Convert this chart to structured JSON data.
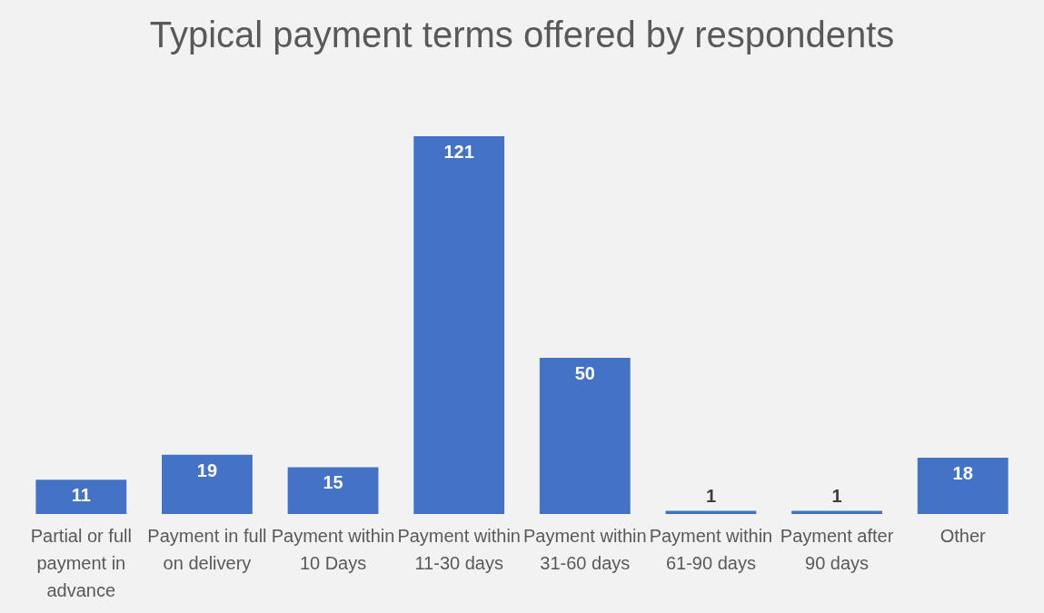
{
  "chart_data": {
    "type": "bar",
    "title": "Typical payment terms offered by respondents",
    "categories": [
      "Partial or full payment in advance",
      "Payment in full on delivery",
      "Payment within 10 Days",
      "Payment within 11-30 days",
      "Payment within 31-60 days",
      "Payment within 61-90 days",
      "Payment after 90 days",
      "Other"
    ],
    "values": [
      11,
      19,
      15,
      121,
      50,
      1,
      1,
      18
    ],
    "color": "#4472c4",
    "data_labels": true
  }
}
